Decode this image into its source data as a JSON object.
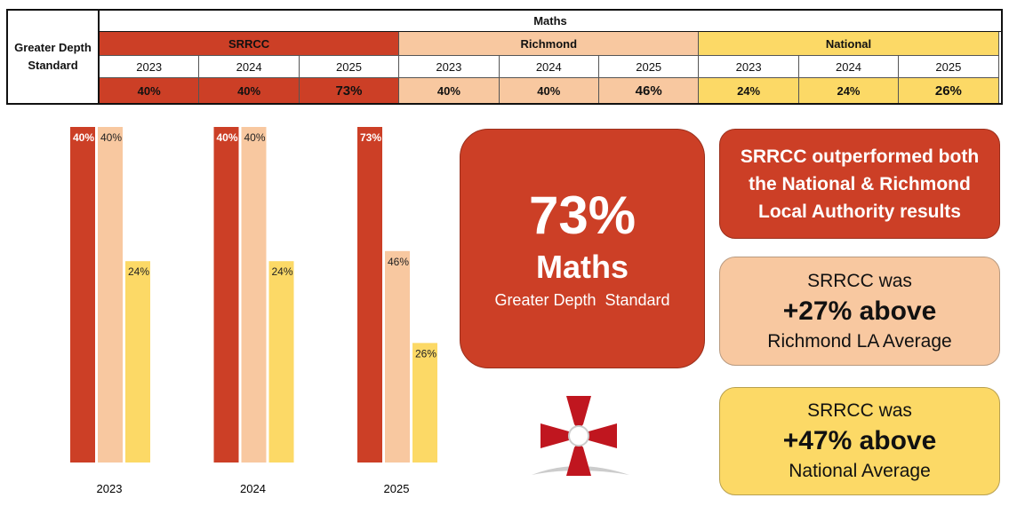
{
  "table": {
    "corner": "Greater Depth Standard",
    "subject": "Maths",
    "groups": [
      {
        "name": "SRRCC",
        "years": [
          "2023",
          "2024",
          "2025"
        ],
        "values": [
          "40%",
          "40%",
          "73%"
        ]
      },
      {
        "name": "Richmond",
        "years": [
          "2023",
          "2024",
          "2025"
        ],
        "values": [
          "40%",
          "40%",
          "46%"
        ]
      },
      {
        "name": "National",
        "years": [
          "2023",
          "2024",
          "2025"
        ],
        "values": [
          "24%",
          "24%",
          "26%"
        ]
      }
    ]
  },
  "chart_data": {
    "type": "bar",
    "categories": [
      "2023",
      "2024",
      "2025"
    ],
    "series": [
      {
        "name": "SRRCC",
        "color": "#cc3f26",
        "values": [
          40,
          40,
          73
        ],
        "value_labels": [
          "40%",
          "40%",
          "73%"
        ]
      },
      {
        "name": "Richmond",
        "color": "#f8c8a0",
        "values": [
          40,
          40,
          46
        ],
        "value_labels": [
          "40%",
          "40%",
          "46%"
        ]
      },
      {
        "name": "National",
        "color": "#fcd966",
        "values": [
          24,
          24,
          26
        ],
        "value_labels": [
          "24%",
          "24%",
          "26%"
        ]
      }
    ]
  },
  "headline": {
    "value": "73%",
    "subject": "Maths",
    "caption": "Greater Depth  Standard"
  },
  "summary": {
    "lines": [
      "SRRCC outperformed both",
      "the National & Richmond",
      "Local Authority results"
    ]
  },
  "richmond_box": {
    "lead": "SRRCC was",
    "figure": "+27% above",
    "tail": "Richmond LA Average"
  },
  "national_box": {
    "lead": "SRRCC was",
    "figure": "+47% above",
    "tail": "National Average"
  }
}
